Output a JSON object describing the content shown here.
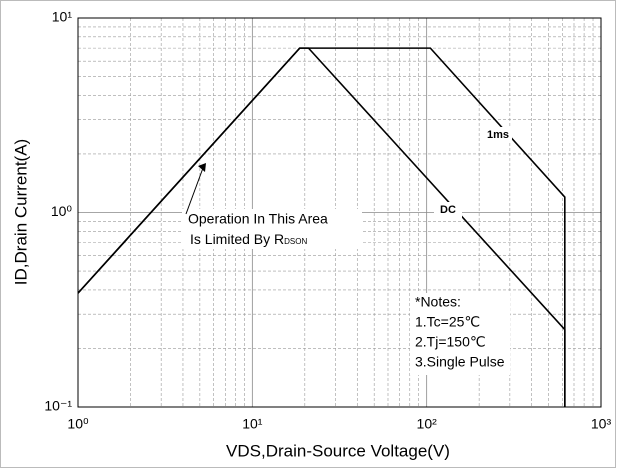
{
  "chart_data": {
    "type": "line",
    "xlabel": "VDS,Drain-Source Voltage(V)",
    "ylabel": "ID,Drain Current(A)",
    "xscale": "log",
    "yscale": "log",
    "grid": true,
    "xlim": [
      1,
      1000
    ],
    "ylim": [
      0.1,
      10
    ],
    "xticks": [
      {
        "value": 1,
        "label": "10⁰"
      },
      {
        "value": 10,
        "label": "10¹"
      },
      {
        "value": 100,
        "label": "10²"
      },
      {
        "value": 1000,
        "label": "10³"
      }
    ],
    "yticks": [
      {
        "value": 0.1,
        "label": "10⁻¹"
      },
      {
        "value": 1,
        "label": "10⁰"
      },
      {
        "value": 10,
        "label": "10¹"
      }
    ],
    "xminorticks": [
      2,
      3,
      4,
      5,
      6,
      7,
      8,
      9,
      20,
      30,
      40,
      50,
      60,
      70,
      80,
      90,
      200,
      300,
      400,
      500,
      600,
      700,
      800,
      900
    ],
    "yminorticks": [
      0.2,
      0.3,
      0.4,
      0.5,
      0.6,
      0.7,
      0.8,
      0.9,
      2,
      3,
      4,
      5,
      6,
      7,
      8,
      9
    ],
    "series": [
      {
        "name": "1ms",
        "color": "#000000",
        "x": [
          1,
          18.7,
          105,
          620,
          620
        ],
        "values": [
          0.385,
          7,
          7,
          1.2,
          0.1
        ]
      },
      {
        "name": "DC",
        "color": "#000000",
        "x": [
          1,
          18.7,
          21,
          620,
          620
        ],
        "values": [
          0.385,
          7,
          7,
          0.25,
          0.1
        ]
      }
    ],
    "area_note": {
      "lines": [
        "Operation In This Area",
        "Is Limited By R"
      ],
      "subscript": "DSON"
    },
    "notes": [
      "*Notes:",
      "1.Tc=25℃",
      "2.Tj=150℃",
      "3.Single Pulse"
    ]
  }
}
